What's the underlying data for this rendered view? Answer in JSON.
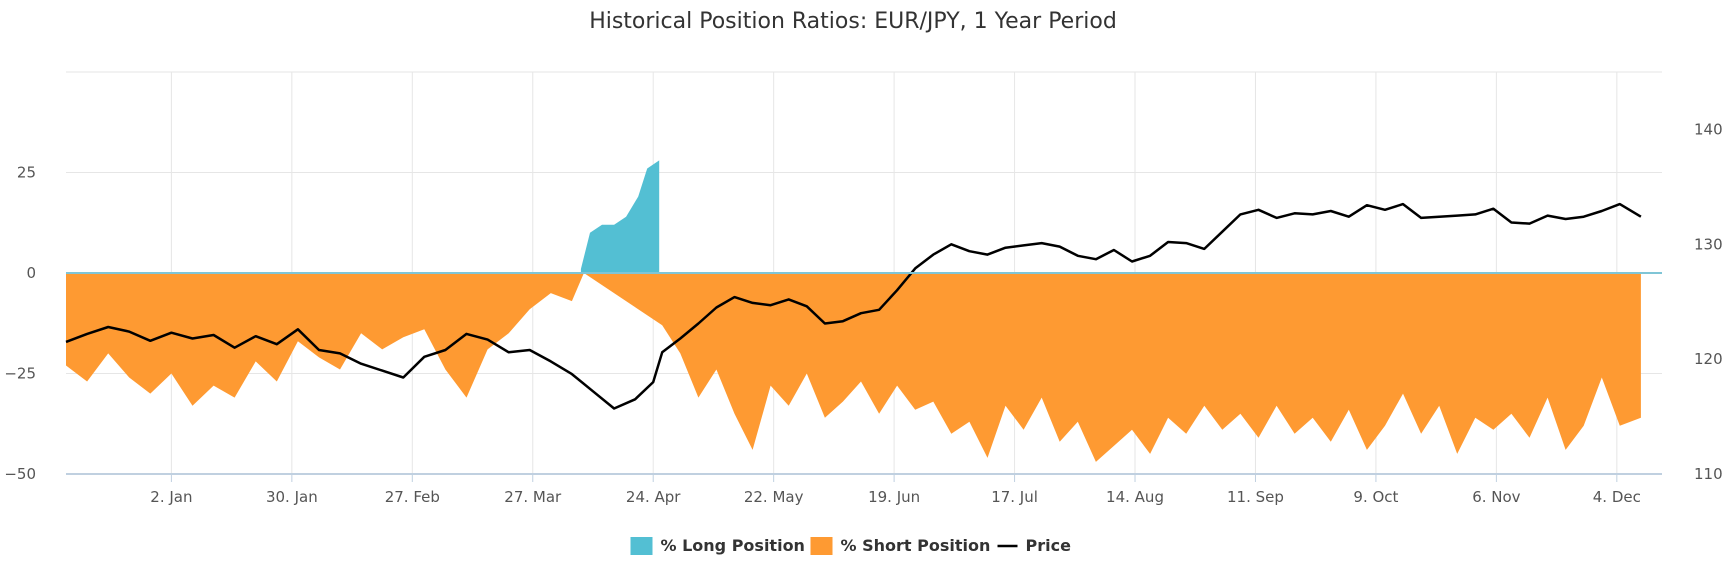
{
  "chart_data": {
    "type": "area",
    "title": "Historical Position Ratios: EUR/JPY, 1 Year Period",
    "x_tick_labels": [
      "2. Jan",
      "30. Jan",
      "27. Feb",
      "27. Mar",
      "24. Apr",
      "22. May",
      "19. Jun",
      "17. Jul",
      "14. Aug",
      "11. Sep",
      "9. Oct",
      "6. Nov",
      "4. Dec"
    ],
    "x_tick_weeks": [
      3,
      7,
      11,
      15,
      19,
      23,
      27,
      31,
      35,
      39,
      43,
      47,
      51
    ],
    "x_range_weeks": [
      -0.5,
      52.5
    ],
    "y_left": {
      "ticks": [
        25,
        0,
        -25,
        -50
      ],
      "labels": [
        "25",
        "0",
        "−25",
        "−50"
      ],
      "range": [
        -50,
        50
      ]
    },
    "y_right": {
      "ticks": [
        140,
        130,
        120,
        110
      ],
      "labels": [
        "140",
        "130",
        "120",
        "110"
      ],
      "range": [
        110,
        145
      ]
    },
    "series": [
      {
        "name": "% Long Position",
        "color": "#53bfd3",
        "x_weeks": [
          16.6,
          16.9,
          17.3,
          17.7,
          18.1,
          18.5,
          18.8,
          19.2
        ],
        "values": [
          1,
          10,
          12,
          12,
          14,
          19,
          26,
          28
        ]
      },
      {
        "name": "% Short Position",
        "color": "#fe9a32",
        "x_weeks": [
          -0.5,
          0.2,
          0.9,
          1.6,
          2.3,
          3.0,
          3.7,
          4.4,
          5.1,
          5.8,
          6.5,
          7.2,
          7.9,
          8.6,
          9.3,
          10.0,
          10.7,
          11.4,
          12.1,
          12.8,
          13.5,
          14.2,
          14.9,
          15.6,
          16.3,
          16.7,
          19.3,
          19.9,
          20.5,
          21.1,
          21.7,
          22.3,
          22.9,
          23.5,
          24.1,
          24.7,
          25.3,
          25.9,
          26.5,
          27.1,
          27.7,
          28.3,
          28.9,
          29.5,
          30.1,
          30.7,
          31.3,
          31.9,
          32.5,
          33.1,
          33.7,
          34.3,
          34.9,
          35.5,
          36.1,
          36.7,
          37.3,
          37.9,
          38.5,
          39.1,
          39.7,
          40.3,
          40.9,
          41.5,
          42.1,
          42.7,
          43.3,
          43.9,
          44.5,
          45.1,
          45.7,
          46.3,
          46.9,
          47.5,
          48.1,
          48.7,
          49.3,
          49.9,
          50.5,
          51.1,
          51.8
        ],
        "values": [
          -23,
          -27,
          -20,
          -26,
          -30,
          -25,
          -33,
          -28,
          -31,
          -22,
          -27,
          -17,
          -21,
          -24,
          -15,
          -19,
          -16,
          -14,
          -24,
          -31,
          -19,
          -15,
          -9,
          -5,
          -7,
          0,
          -13,
          -20,
          -31,
          -24,
          -35,
          -44,
          -28,
          -33,
          -25,
          -36,
          -32,
          -27,
          -35,
          -28,
          -34,
          -32,
          -40,
          -37,
          -46,
          -33,
          -39,
          -31,
          -42,
          -37,
          -47,
          -43,
          -39,
          -45,
          -36,
          -40,
          -33,
          -39,
          -35,
          -41,
          -33,
          -40,
          -36,
          -42,
          -34,
          -44,
          -38,
          -30,
          -40,
          -33,
          -45,
          -36,
          -39,
          -35,
          -41,
          -31,
          -44,
          -38,
          -26,
          -38,
          -36
        ]
      },
      {
        "name": "Price",
        "color": "#000000",
        "x_weeks": [
          -0.5,
          0.2,
          0.9,
          1.6,
          2.3,
          3.0,
          3.7,
          4.4,
          5.1,
          5.8,
          6.5,
          7.2,
          7.9,
          8.6,
          9.3,
          10.0,
          10.7,
          11.4,
          12.1,
          12.8,
          13.5,
          14.2,
          14.9,
          15.6,
          16.3,
          17.0,
          17.7,
          18.4,
          19.0,
          19.3,
          19.9,
          20.5,
          21.1,
          21.7,
          22.3,
          22.9,
          23.5,
          24.1,
          24.7,
          25.3,
          25.9,
          26.5,
          27.1,
          27.7,
          28.3,
          28.9,
          29.5,
          30.1,
          30.7,
          31.3,
          31.9,
          32.5,
          33.1,
          33.7,
          34.3,
          34.9,
          35.5,
          36.1,
          36.7,
          37.3,
          37.9,
          38.5,
          39.1,
          39.7,
          40.3,
          40.9,
          41.5,
          42.1,
          42.7,
          43.3,
          43.9,
          44.5,
          45.1,
          45.7,
          46.3,
          46.9,
          47.5,
          48.1,
          48.7,
          49.3,
          49.9,
          50.5,
          51.1,
          51.8
        ],
        "values": [
          121.5,
          122.2,
          122.8,
          122.4,
          121.6,
          122.3,
          121.8,
          122.1,
          121.0,
          122.0,
          121.3,
          122.6,
          120.8,
          120.5,
          119.6,
          119.0,
          118.4,
          120.2,
          120.8,
          122.2,
          121.7,
          120.6,
          120.8,
          119.8,
          118.7,
          117.2,
          115.7,
          116.5,
          118.0,
          120.6,
          121.8,
          123.1,
          124.5,
          125.4,
          124.9,
          124.7,
          125.2,
          124.6,
          123.1,
          123.3,
          124.0,
          124.3,
          126.0,
          127.9,
          129.1,
          130.0,
          129.4,
          129.1,
          129.7,
          129.9,
          130.1,
          129.8,
          129.0,
          128.7,
          129.5,
          128.5,
          129.0,
          130.2,
          130.1,
          129.6,
          131.1,
          132.6,
          133.0,
          132.3,
          132.7,
          132.6,
          132.9,
          132.4,
          133.4,
          133.0,
          133.5,
          132.3,
          132.4,
          132.5,
          132.6,
          133.1,
          131.9,
          131.8,
          132.5,
          132.2,
          132.4,
          132.9,
          133.5,
          132.4
        ]
      }
    ],
    "legend": [
      {
        "label": "% Long Position",
        "color": "#53bfd3",
        "marker": "square"
      },
      {
        "label": "% Short Position",
        "color": "#fe9a32",
        "marker": "square"
      },
      {
        "label": "Price",
        "color": "#000000",
        "marker": "line"
      }
    ],
    "legend_position": "bottom-center",
    "grid": true
  }
}
